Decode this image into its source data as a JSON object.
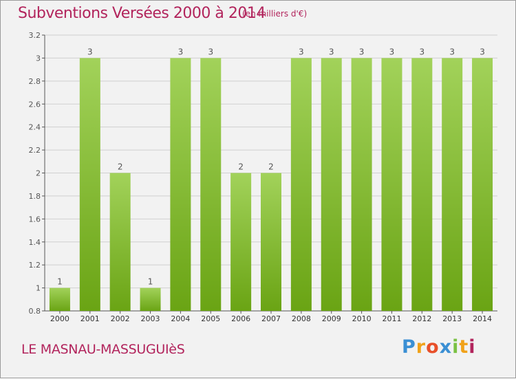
{
  "header": {
    "title": "Subventions Versées 2000 à 2014",
    "subtitle": "(en milliers d'€)"
  },
  "footer": {
    "commune": "LE MASNAU-MASSUGUIèS",
    "brand_letters": [
      "P",
      "r",
      "o",
      "x",
      "i",
      "t",
      "i"
    ],
    "brand_colors": [
      "#3a8fd4",
      "#f0a21a",
      "#e8502a",
      "#3a8fd4",
      "#7ac143",
      "#f0a21a",
      "#b2245c"
    ]
  },
  "chart_data": {
    "type": "bar",
    "categories": [
      "2000",
      "2001",
      "2002",
      "2003",
      "2004",
      "2005",
      "2006",
      "2007",
      "2008",
      "2009",
      "2010",
      "2011",
      "2012",
      "2013",
      "2014"
    ],
    "values": [
      1,
      3,
      2,
      1,
      3,
      3,
      2,
      2,
      3,
      3,
      3,
      3,
      3,
      3,
      3
    ],
    "data_labels": [
      "1",
      "3",
      "2",
      "1",
      "3",
      "3",
      "2",
      "2",
      "3",
      "3",
      "3",
      "3",
      "3",
      "3",
      "3"
    ],
    "ylim": [
      0.8,
      3.2
    ],
    "yticks": [
      0.8,
      1,
      1.2,
      1.4,
      1.6,
      1.8,
      2,
      2.2,
      2.4,
      2.6,
      2.8,
      3,
      3.2
    ],
    "ytick_labels": [
      "0.8",
      "1",
      "1.2",
      "1.4",
      "1.6",
      "1.8",
      "2",
      "2.2",
      "2.4",
      "2.6",
      "2.8",
      "3",
      "3.2"
    ],
    "grid": true,
    "colors": {
      "bar_top": "#a2d25a",
      "bar_bottom": "#6aa414",
      "label": "#555555",
      "grid": "#cfcfcf"
    }
  }
}
